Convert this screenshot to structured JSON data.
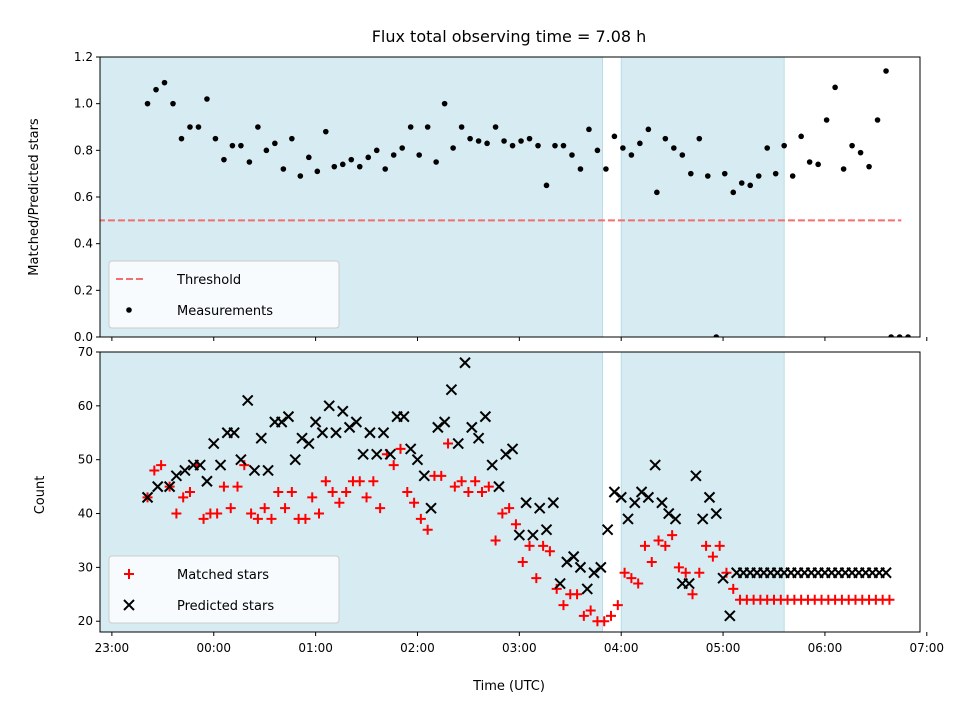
{
  "chart_data": [
    {
      "type": "scatter",
      "panel": "top",
      "title": "Flux total observing time = 7.08 h",
      "xlabel": "",
      "ylabel": "Matched/Predicted stars",
      "ylim": [
        0,
        1.2
      ],
      "yticks": [
        "0.0",
        "0.2",
        "0.4",
        "0.6",
        "0.8",
        "1.0",
        "1.2"
      ],
      "x_format": "HH:MM UTC (minutes since 23:00 of first night)",
      "legend_position": "lower-left",
      "grid": false,
      "threshold": {
        "name": "Threshold",
        "value": 0.5,
        "x_range": [
          -20,
          465
        ],
        "color": "#f07070"
      },
      "series": [
        {
          "name": "Measurements",
          "color": "#000000",
          "x": [
            21,
            26,
            31,
            36,
            41,
            46,
            51,
            56,
            61,
            66,
            71,
            76,
            81,
            86,
            91,
            96,
            101,
            106,
            111,
            116,
            121,
            126,
            131,
            136,
            141,
            146,
            151,
            156,
            161,
            166,
            171,
            176,
            181,
            186,
            191,
            196,
            201,
            206,
            211,
            216,
            221,
            226,
            231,
            236,
            241,
            246,
            251,
            256,
            261,
            266,
            271,
            276,
            281,
            286,
            291,
            296,
            301,
            306,
            311,
            316,
            321,
            326,
            331,
            336,
            341,
            346,
            351,
            356,
            361,
            366,
            371,
            376,
            381,
            386,
            391,
            396,
            401,
            406,
            411,
            416,
            421,
            426,
            431,
            436,
            441,
            446,
            451,
            456,
            459,
            464,
            469
          ],
          "y": [
            1.0,
            1.06,
            1.09,
            1.0,
            0.85,
            0.9,
            0.9,
            1.02,
            0.85,
            0.76,
            0.82,
            0.82,
            0.75,
            0.9,
            0.8,
            0.83,
            0.72,
            0.85,
            0.69,
            0.77,
            0.71,
            0.88,
            0.73,
            0.74,
            0.76,
            0.73,
            0.77,
            0.8,
            0.72,
            0.78,
            0.81,
            0.9,
            0.78,
            0.9,
            0.75,
            1.0,
            0.81,
            0.9,
            0.85,
            0.84,
            0.83,
            0.9,
            0.84,
            0.82,
            0.84,
            0.85,
            0.82,
            0.65,
            0.82,
            0.82,
            0.78,
            0.72,
            0.89,
            0.8,
            0.72,
            0.86,
            0.81,
            0.78,
            0.83,
            0.89,
            0.62,
            0.85,
            0.81,
            0.78,
            0.7,
            0.85,
            0.69,
            0.0,
            0.7,
            0.62,
            0.66,
            0.65,
            0.69,
            0.81,
            0.7,
            0.82,
            0.69,
            0.86,
            0.75,
            0.74,
            0.93,
            1.07,
            0.72,
            0.82,
            0.79,
            0.73,
            0.93,
            1.14,
            0.0,
            0.0,
            0.0
          ]
        }
      ],
      "shaded_spans": [
        [
          -40,
          289
        ],
        [
          300,
          396
        ]
      ]
    },
    {
      "type": "scatter",
      "panel": "bottom",
      "title": "",
      "xlabel": "Time (UTC)",
      "ylabel": "Count",
      "ylim": [
        18,
        70
      ],
      "yticks": [
        "20",
        "30",
        "40",
        "50",
        "60",
        "70"
      ],
      "xlim_minutes": [
        -7,
        476
      ],
      "xticks": [
        "23:00",
        "00:00",
        "01:00",
        "02:00",
        "03:00",
        "04:00",
        "05:00",
        "06:00",
        "07:00"
      ],
      "xtick_minutes": [
        0,
        60,
        120,
        180,
        240,
        300,
        360,
        420,
        480
      ],
      "legend_position": "lower-left",
      "grid": false,
      "series": [
        {
          "name": "Matched stars",
          "marker": "+",
          "color": "#ff0000",
          "x": [
            21,
            25,
            29,
            34,
            38,
            42,
            46,
            50,
            54,
            58,
            62,
            66,
            70,
            74,
            78,
            82,
            86,
            90,
            94,
            98,
            102,
            106,
            110,
            114,
            118,
            122,
            126,
            130,
            134,
            138,
            142,
            146,
            150,
            154,
            158,
            162,
            166,
            170,
            174,
            178,
            182,
            186,
            190,
            194,
            198,
            202,
            206,
            210,
            214,
            218,
            222,
            226,
            230,
            234,
            238,
            242,
            246,
            250,
            254,
            258,
            262,
            266,
            270,
            274,
            278,
            282,
            286,
            290,
            294,
            298,
            302,
            306,
            310,
            314,
            318,
            322,
            326,
            330,
            334,
            338,
            342,
            346,
            350,
            354,
            358,
            362,
            366,
            370,
            374,
            378,
            382,
            386,
            390,
            394,
            398,
            402,
            406,
            410,
            414,
            418,
            422,
            426,
            430,
            434,
            438,
            442,
            446,
            450,
            454,
            458
          ],
          "y": [
            43,
            48,
            49,
            45,
            40,
            43,
            44,
            49,
            39,
            40,
            40,
            45,
            41,
            45,
            49,
            40,
            39,
            41,
            39,
            44,
            41,
            44,
            39,
            39,
            43,
            40,
            46,
            44,
            42,
            44,
            46,
            46,
            43,
            46,
            41,
            51,
            49,
            52,
            44,
            42,
            39,
            37,
            47,
            47,
            53,
            45,
            46,
            44,
            46,
            44,
            45,
            35,
            40,
            41,
            38,
            31,
            34,
            28,
            34,
            33,
            26,
            23,
            25,
            25,
            21,
            22,
            20,
            20,
            21,
            23,
            29,
            28,
            27,
            34,
            31,
            35,
            34,
            36,
            30,
            29,
            25,
            29,
            34,
            32,
            34,
            29,
            26,
            24,
            24,
            24,
            24,
            24,
            24,
            24,
            24,
            24,
            24,
            24,
            24,
            24,
            24,
            24,
            24,
            24,
            24,
            24,
            24,
            24,
            24,
            24
          ]
        },
        {
          "name": "Predicted stars",
          "marker": "x",
          "color": "#000000",
          "x": [
            21,
            27,
            34,
            38,
            43,
            48,
            52,
            56,
            60,
            64,
            68,
            72,
            76,
            80,
            84,
            88,
            92,
            96,
            100,
            104,
            108,
            112,
            116,
            120,
            124,
            128,
            132,
            136,
            140,
            144,
            148,
            152,
            156,
            160,
            164,
            168,
            172,
            176,
            180,
            184,
            188,
            192,
            196,
            200,
            204,
            208,
            212,
            216,
            220,
            224,
            228,
            232,
            236,
            240,
            244,
            248,
            252,
            256,
            260,
            264,
            268,
            272,
            276,
            280,
            284,
            288,
            292,
            296,
            300,
            304,
            308,
            312,
            316,
            320,
            324,
            328,
            332,
            336,
            340,
            344,
            348,
            352,
            356,
            360,
            364,
            368,
            372,
            376,
            380,
            384,
            388,
            392,
            396,
            400,
            404,
            408,
            412,
            416,
            420,
            424,
            428,
            432,
            436,
            440,
            444,
            448,
            452,
            456
          ],
          "y": [
            43,
            45,
            45,
            47,
            48,
            49,
            49,
            46,
            53,
            49,
            55,
            55,
            50,
            61,
            48,
            54,
            48,
            57,
            57,
            58,
            50,
            54,
            53,
            57,
            55,
            60,
            55,
            59,
            56,
            57,
            51,
            55,
            51,
            55,
            51,
            58,
            58,
            52,
            50,
            47,
            41,
            56,
            57,
            63,
            53,
            68,
            56,
            54,
            58,
            49,
            45,
            51,
            52,
            36,
            42,
            36,
            41,
            37,
            42,
            27,
            31,
            32,
            30,
            26,
            29,
            30,
            37,
            44,
            43,
            39,
            42,
            44,
            43,
            49,
            42,
            40,
            39,
            27,
            27,
            47,
            39,
            43,
            40,
            28,
            21,
            29,
            29,
            29,
            29,
            29,
            29,
            29,
            29,
            29,
            29,
            29,
            29,
            29,
            29,
            29,
            29,
            29,
            29,
            29,
            29,
            29,
            29,
            29
          ]
        }
      ],
      "shaded_spans": [
        [
          -40,
          289
        ],
        [
          300,
          396
        ]
      ]
    }
  ]
}
